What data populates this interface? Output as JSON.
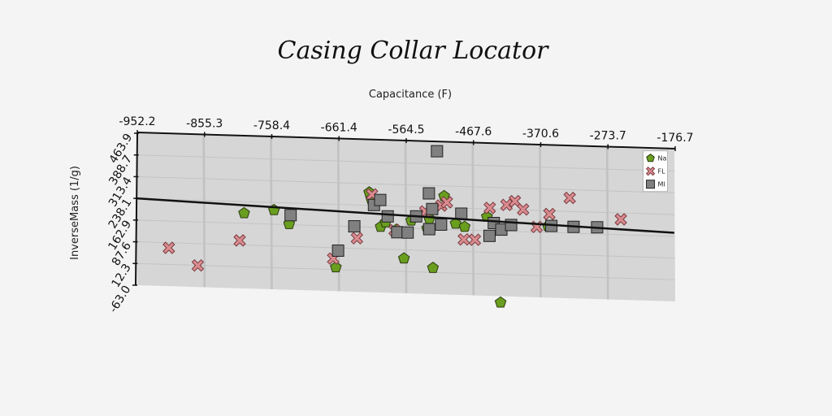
{
  "chart_data": {
    "type": "scatter",
    "title": "Casing Collar Locator",
    "xlabel": "Capacitance (F)",
    "ylabel": "InverseMass (1/g)",
    "xlim": [
      -952.2,
      -176.7
    ],
    "ylim": [
      -63.0,
      463.9
    ],
    "x_ticks": [
      "-952.2",
      "-855.3",
      "-758.4",
      "-661.4",
      "-564.5",
      "-467.6",
      "-370.6",
      "-273.7",
      "-176.7"
    ],
    "y_ticks": [
      "-63.0",
      "12.3",
      "87.6",
      "162.9",
      "238.1",
      "313.4",
      "388.7",
      "463.9"
    ],
    "grid": true,
    "legend_position": "top-right",
    "trendline": {
      "x": [
        -952.2,
        -176.7
      ],
      "y": [
        238,
        175
      ]
    },
    "series": [
      {
        "name": "Na",
        "marker": "pentagon",
        "color": "#6a9e1f",
        "x": [
          -797,
          -754,
          -732,
          -664,
          -617,
          -614,
          -600,
          -593,
          -577,
          -566,
          -556,
          -533,
          -530,
          -524,
          -509,
          -492,
          -479,
          -447,
          -359,
          -426
        ],
        "y": [
          198,
          212,
          165,
          20,
          283,
          260,
          165,
          181,
          157,
          58,
          190,
          164,
          198,
          28,
          278,
          184,
          174,
          211,
          185,
          -85
        ]
      },
      {
        "name": "FL",
        "marker": "x",
        "color": "#d98b8f",
        "x": [
          -905,
          -863,
          -803,
          -668,
          -634,
          -613,
          -580,
          -536,
          -513,
          -505,
          -480,
          -464,
          -443,
          -419,
          -407,
          -395,
          -375,
          -357,
          -328,
          -254
        ],
        "y": [
          70,
          12,
          103,
          50,
          123,
          276,
          155,
          223,
          245,
          257,
          130,
          130,
          242,
          254,
          268,
          240,
          181,
          227,
          285,
          216
        ]
      },
      {
        "name": "MI",
        "marker": "square",
        "color": "#808080",
        "x": [
          -730,
          -638,
          -661,
          -610,
          -601,
          -590,
          -576,
          -561,
          -549,
          -530,
          -531,
          -526,
          -520,
          -513,
          -484,
          -443,
          -437,
          -426,
          -412,
          -354,
          -322,
          -288
        ],
        "y": [
          196,
          164,
          78,
          240,
          258,
          202,
          148,
          148,
          205,
          162,
          286,
          232,
          433,
          179,
          219,
          145,
          190,
          168,
          185,
          186,
          185,
          186
        ]
      }
    ]
  }
}
